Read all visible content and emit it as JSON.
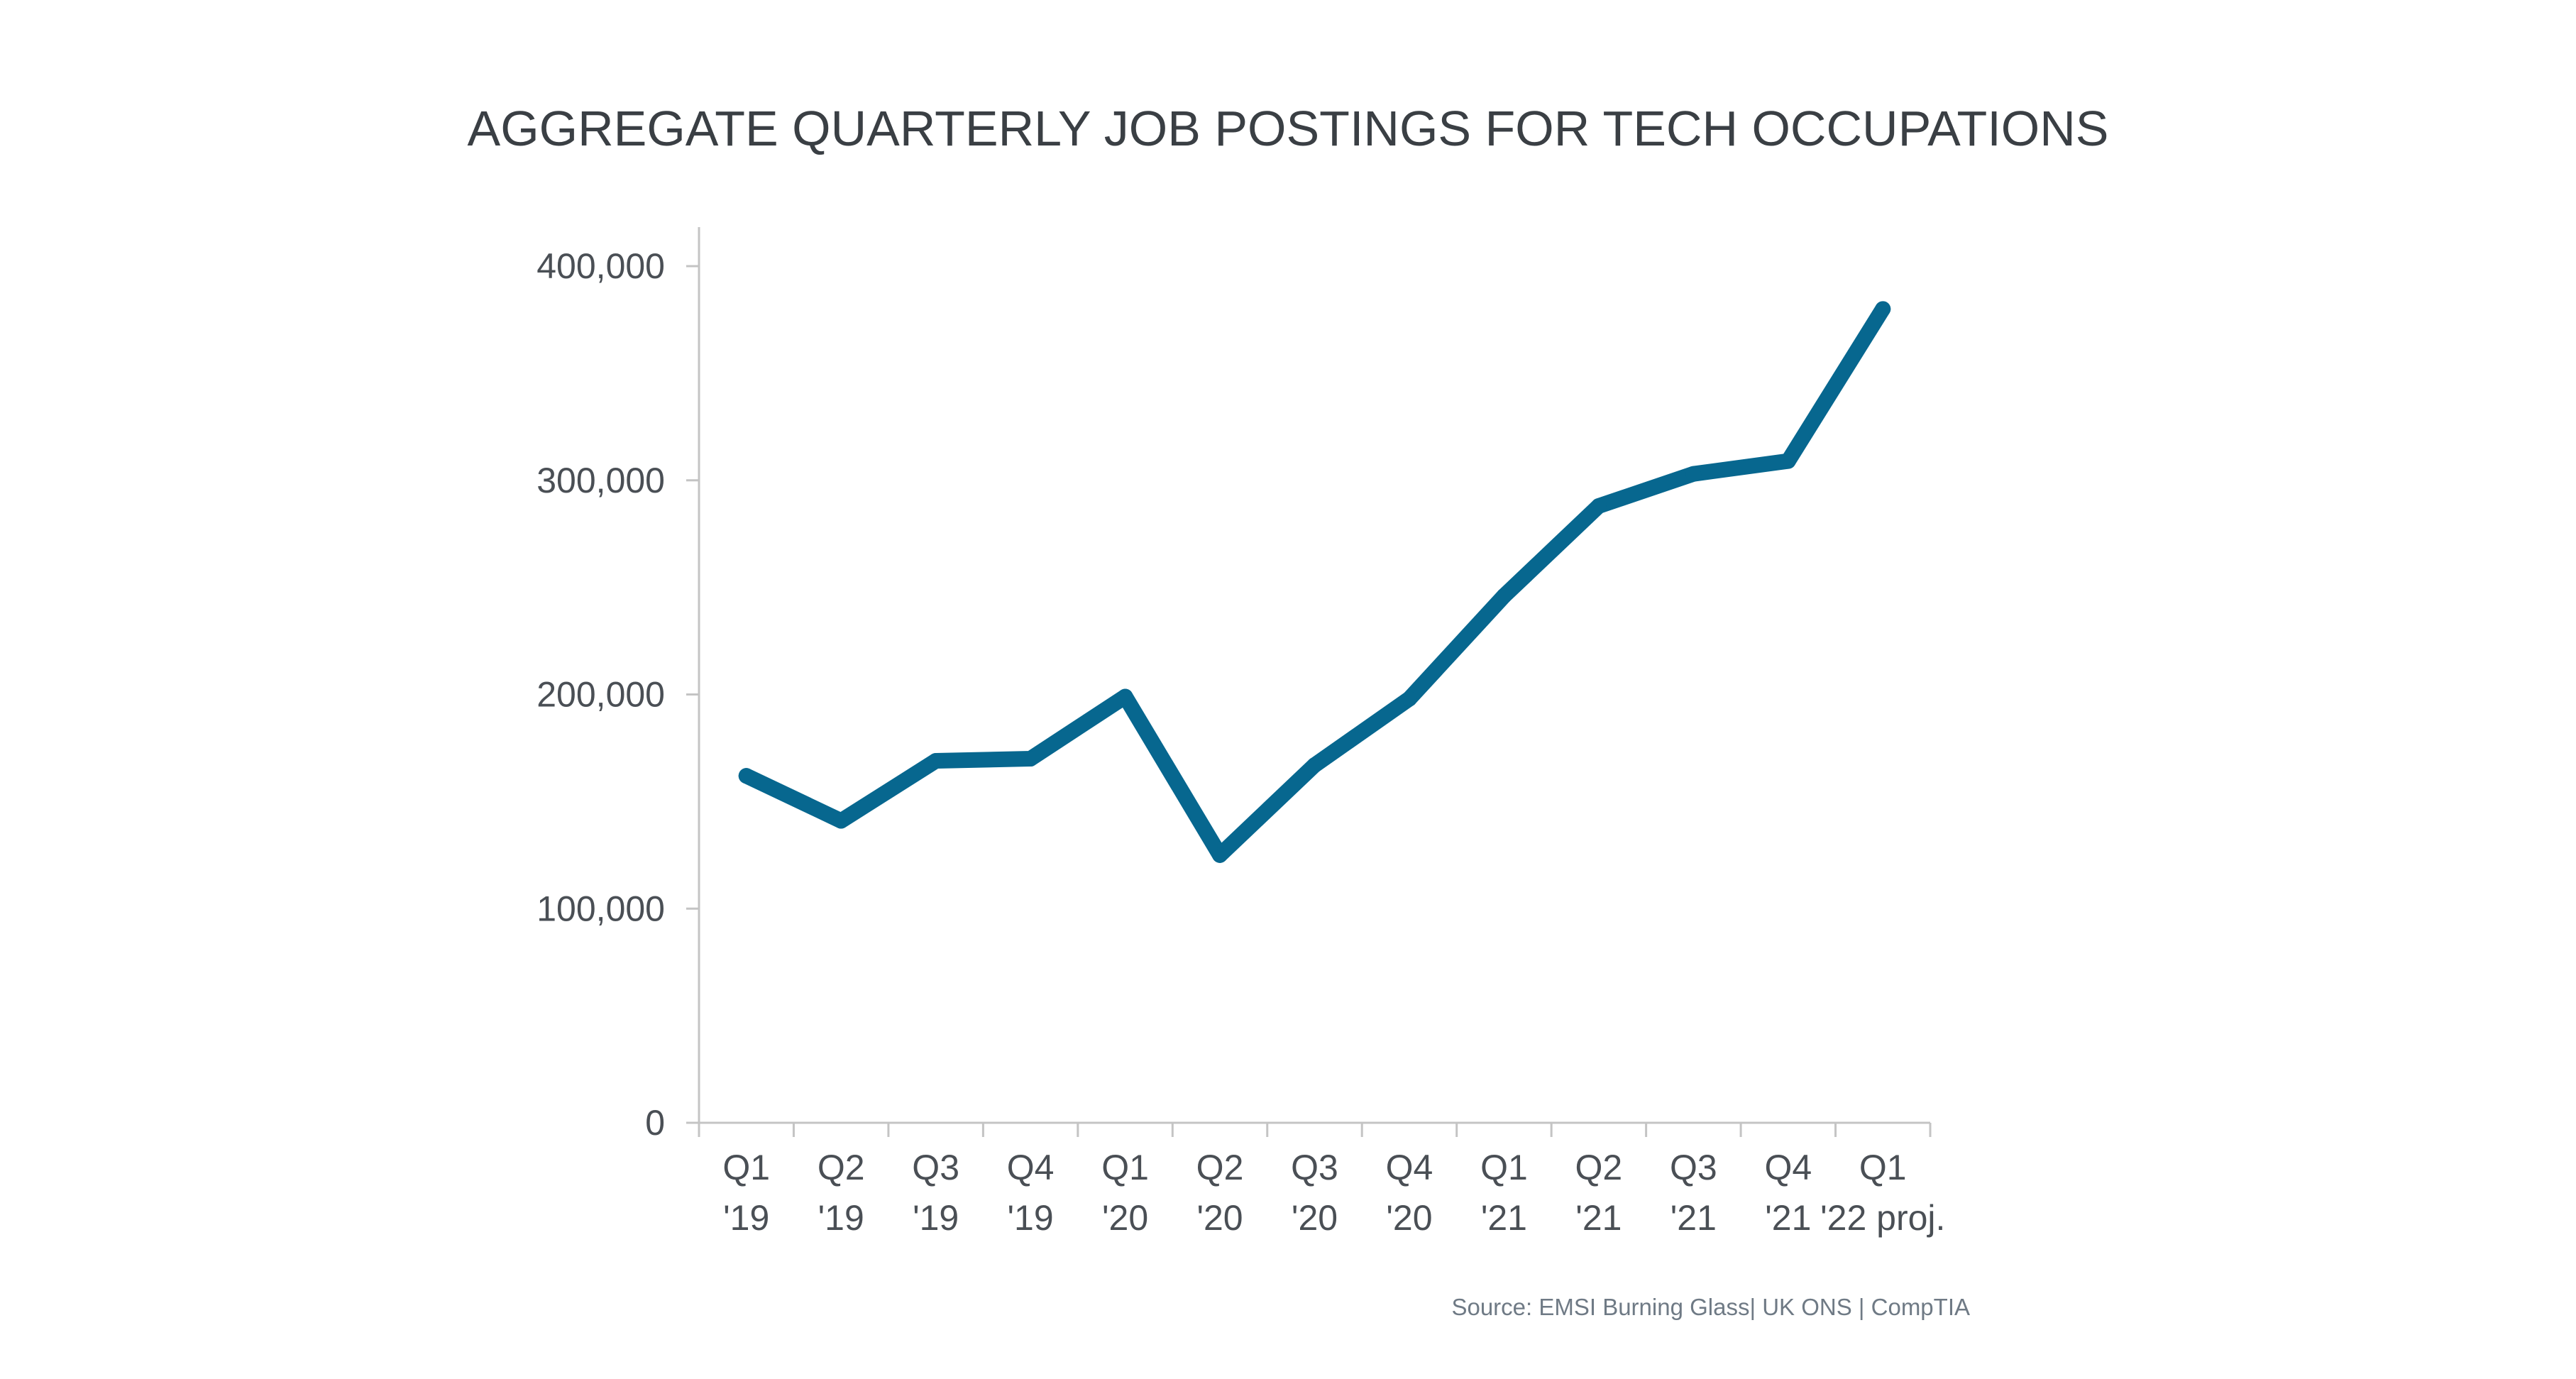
{
  "chart_data": {
    "type": "line",
    "title": "AGGREGATE QUARTERLY JOB POSTINGS FOR TECH OCCUPATIONS",
    "xlabel": "",
    "ylabel": "",
    "categories": [
      [
        "Q1",
        "'19"
      ],
      [
        "Q2",
        "'19"
      ],
      [
        "Q3",
        "'19"
      ],
      [
        "Q4",
        "'19"
      ],
      [
        "Q1",
        "'20"
      ],
      [
        "Q2",
        "'20"
      ],
      [
        "Q3",
        "'20"
      ],
      [
        "Q4",
        "'20"
      ],
      [
        "Q1",
        "'21"
      ],
      [
        "Q2",
        "'21"
      ],
      [
        "Q3",
        "'21"
      ],
      [
        "Q4",
        "'21"
      ],
      [
        "Q1",
        "'22 proj."
      ]
    ],
    "series": [
      {
        "name": "Job postings",
        "color": "#07678f",
        "values": [
          162000,
          141000,
          169000,
          170000,
          199000,
          125000,
          167000,
          198000,
          246000,
          288000,
          303000,
          309000,
          380000
        ]
      }
    ],
    "ylim": [
      0,
      400000
    ],
    "yticks": [
      0,
      100000,
      200000,
      300000,
      400000
    ],
    "ytick_labels": [
      "0",
      "100,000",
      "200,000",
      "300,000",
      "400,000"
    ],
    "grid": false,
    "legend": "none",
    "source": "Source: EMSI Burning Glass| UK ONS | CompTIA"
  }
}
